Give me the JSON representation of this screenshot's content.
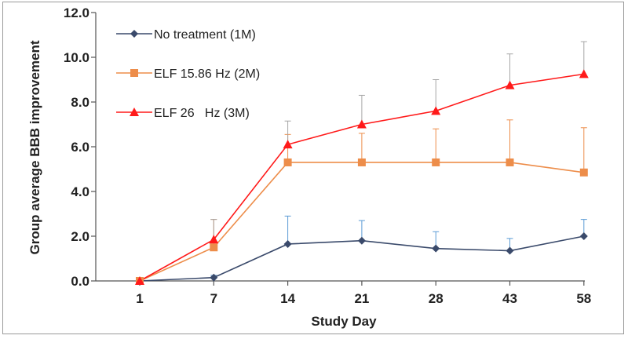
{
  "chart_data": {
    "type": "line",
    "title": "",
    "xlabel": "Study Day",
    "ylabel": "Group average BBB improvement",
    "categories": [
      "1",
      "7",
      "14",
      "21",
      "28",
      "43",
      "58"
    ],
    "ylim": [
      0,
      12
    ],
    "yticks": [
      "0.0",
      "2.0",
      "4.0",
      "6.0",
      "8.0",
      "10.0",
      "12.0"
    ],
    "ytick_values": [
      0,
      2,
      4,
      6,
      8,
      10,
      12
    ],
    "legend_position": "top-left",
    "series": [
      {
        "name": "No treatment (1M)",
        "color": "#3a4a6b",
        "error_color": "#5b9bd5",
        "marker": "diamond",
        "values": [
          0.0,
          0.15,
          1.65,
          1.8,
          1.45,
          1.35,
          2.0
        ],
        "errors": [
          0.0,
          0.1,
          1.25,
          0.9,
          0.75,
          0.55,
          0.75
        ]
      },
      {
        "name": "ELF 15.86 Hz (2M)",
        "color": "#ed8d4a",
        "error_color": "#ed8d4a",
        "marker": "square",
        "values": [
          0.0,
          1.5,
          5.3,
          5.3,
          5.3,
          5.3,
          4.85
        ],
        "errors": [
          0.0,
          1.25,
          1.25,
          1.3,
          1.5,
          1.9,
          2.0
        ]
      },
      {
        "name": "ELF 26   Hz (3M)",
        "color": "#ff1a1a",
        "error_color": "#a6a6a6",
        "marker": "triangle",
        "values": [
          0.0,
          1.85,
          6.1,
          7.0,
          7.6,
          8.75,
          9.25
        ],
        "errors": [
          0.0,
          0.9,
          1.05,
          1.3,
          1.4,
          1.4,
          1.45
        ]
      }
    ]
  }
}
